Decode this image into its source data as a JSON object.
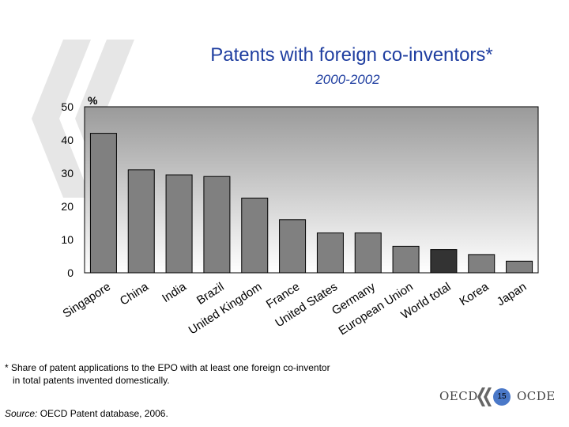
{
  "title": "Patents with foreign co-inventors*",
  "subtitle": "2000-2002",
  "footnote": {
    "line1": "* Share of patent applications to the EPO with at least one foreign co-inventor",
    "line2": "in total patents invented domestically."
  },
  "source": {
    "label": "Source:",
    "text": "OECD Patent database, 2006."
  },
  "logo": {
    "left_text": "OECD",
    "right_text": "OCDE",
    "page_number": "15"
  },
  "colors": {
    "title": "#1f3ea0",
    "bar": "#808080",
    "bar_highlight": "#333333",
    "plot_bg_top": "#9a9a9a",
    "plot_bg_bottom": "#ffffff"
  },
  "chart_data": {
    "type": "bar",
    "title": "Patents with foreign co-inventors*",
    "subtitle": "2000-2002",
    "ylabel": "%",
    "xlabel": "",
    "ylim": [
      0,
      50
    ],
    "yticks": [
      0,
      10,
      20,
      30,
      40,
      50
    ],
    "grid": false,
    "categories": [
      "Singapore",
      "China",
      "India",
      "Brazil",
      "United Kingdom",
      "France",
      "United States",
      "Germany",
      "European Union",
      "World total",
      "Korea",
      "Japan"
    ],
    "values": [
      42,
      31,
      29.5,
      29,
      22.5,
      16,
      12,
      12,
      8,
      7,
      5.5,
      3.5
    ],
    "highlight": [
      "World total"
    ]
  }
}
